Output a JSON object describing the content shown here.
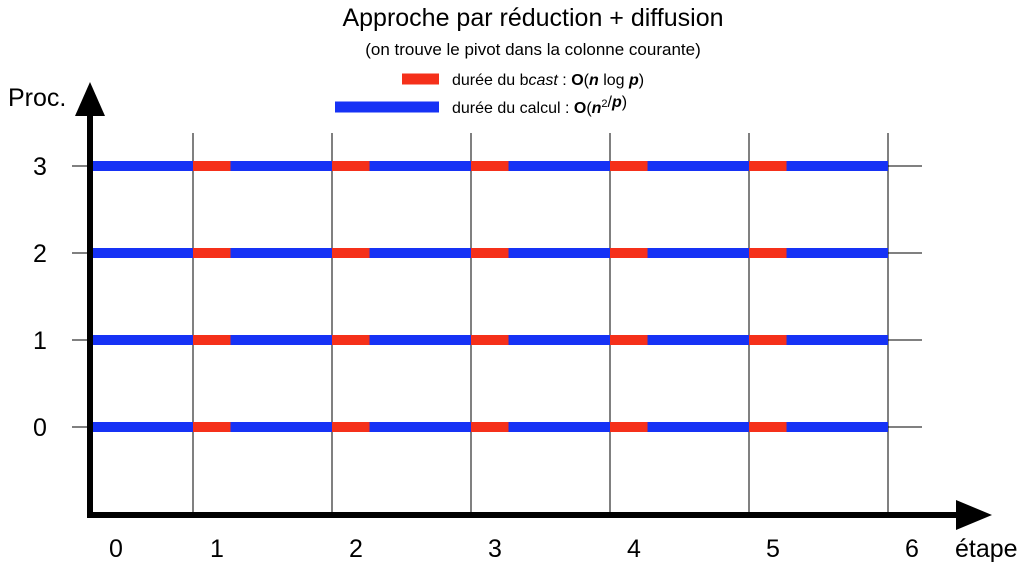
{
  "chart_data": {
    "type": "timeline",
    "title": "Approche par réduction + diffusion",
    "subtitle": "(on trouve le pivot dans la colonne courante)",
    "xlabel": "étape",
    "ylabel": "Proc.",
    "x_ticks": [
      "0",
      "1",
      "2",
      "3",
      "4",
      "5",
      "6"
    ],
    "y_ticks": [
      "0",
      "1",
      "2",
      "3"
    ],
    "xlim": [
      0,
      6
    ],
    "processors": [
      0,
      1,
      2,
      3
    ],
    "steps": [
      1,
      2,
      3,
      4,
      5
    ],
    "bcast_duration_steps": 0.27,
    "compute_end_step": 5.0,
    "grid": true,
    "legend_position": "top-center",
    "legend": [
      {
        "key": "bcast",
        "color": "#f5301a",
        "label_parts": [
          [
            "durée du b",
            ""
          ],
          [
            "cast",
            "i"
          ],
          [
            " : ",
            ""
          ],
          [
            "O",
            "b"
          ],
          [
            "(",
            ""
          ],
          [
            "n",
            "bi"
          ],
          [
            " log ",
            ""
          ],
          [
            "p",
            "bi"
          ],
          [
            ")",
            ""
          ]
        ]
      },
      {
        "key": "compute",
        "color": "#1632f5",
        "label_parts": [
          [
            "durée du calcul : ",
            ""
          ],
          [
            "O",
            "b"
          ],
          [
            "(",
            ""
          ],
          [
            "n",
            "bi"
          ],
          [
            "2",
            "sup"
          ],
          [
            "/",
            ""
          ],
          [
            "p",
            "bi"
          ],
          [
            ")",
            ""
          ]
        ]
      }
    ],
    "colors": {
      "bcast": "#f5301a",
      "compute": "#1632f5",
      "axis": "#000000",
      "grid": "#000000"
    }
  }
}
